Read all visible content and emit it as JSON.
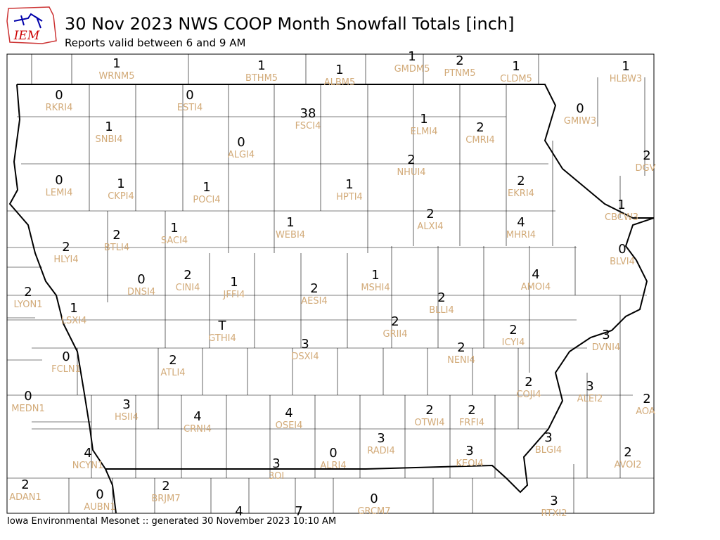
{
  "header": {
    "logo_text": "IEM",
    "title": "30 Nov 2023 NWS COOP Month Snowfall Totals [inch]",
    "subtitle": "Reports valid between 6 and 9 AM"
  },
  "stations": [
    {
      "value": "1",
      "id": "WRNM5"
    },
    {
      "value": "1",
      "id": "BTHM5"
    },
    {
      "value": "1",
      "id": "ALBM5"
    },
    {
      "value": "1",
      "id": "GMDM5"
    },
    {
      "value": "2",
      "id": "PTNM5"
    },
    {
      "value": "1",
      "id": "CLDM5"
    },
    {
      "value": "1",
      "id": "HLBW3"
    },
    {
      "value": "0",
      "id": "RKRI4"
    },
    {
      "value": "0",
      "id": "ESTI4"
    },
    {
      "value": "38",
      "id": "FSCI4"
    },
    {
      "value": "1",
      "id": "ELMI4"
    },
    {
      "value": "0",
      "id": "GMIW3"
    },
    {
      "value": "1",
      "id": "SNBI4"
    },
    {
      "value": "0",
      "id": "ALGI4"
    },
    {
      "value": "2",
      "id": "CMRI4"
    },
    {
      "value": "2",
      "id": "DGV"
    },
    {
      "value": "2",
      "id": "NHUI4"
    },
    {
      "value": "0",
      "id": "LEMI4"
    },
    {
      "value": "1",
      "id": "CKPI4"
    },
    {
      "value": "1",
      "id": "POCI4"
    },
    {
      "value": "1",
      "id": "HPTI4"
    },
    {
      "value": "2",
      "id": "EKRI4"
    },
    {
      "value": "1",
      "id": "CBCW3"
    },
    {
      "value": "2",
      "id": "ALXI4"
    },
    {
      "value": "1",
      "id": "WEBI4"
    },
    {
      "value": "4",
      "id": "MHRI4"
    },
    {
      "value": "1",
      "id": "SACI4"
    },
    {
      "value": "2",
      "id": "BTLI4"
    },
    {
      "value": "2",
      "id": "HLYI4"
    },
    {
      "value": "0",
      "id": "BLVI4"
    },
    {
      "value": "4",
      "id": "AMOI4"
    },
    {
      "value": "1",
      "id": "MSHI4"
    },
    {
      "value": "0",
      "id": "DNSI4"
    },
    {
      "value": "2",
      "id": "CINI4"
    },
    {
      "value": "1",
      "id": "JFFI4"
    },
    {
      "value": "2",
      "id": "AESI4"
    },
    {
      "value": "2",
      "id": "LYON1"
    },
    {
      "value": "1",
      "id": "LSXI4"
    },
    {
      "value": "2",
      "id": "BLLI4"
    },
    {
      "value": "T",
      "id": "GTHI4"
    },
    {
      "value": "2",
      "id": "ICYI4"
    },
    {
      "value": "3",
      "id": "DVNI4"
    },
    {
      "value": "2",
      "id": "GRII4"
    },
    {
      "value": "3",
      "id": "DSXI4"
    },
    {
      "value": "2",
      "id": "NENI4"
    },
    {
      "value": "0",
      "id": "FCLN1"
    },
    {
      "value": "2",
      "id": "ATLI4"
    },
    {
      "value": "2",
      "id": "COJI4"
    },
    {
      "value": "3",
      "id": "ALEI2"
    },
    {
      "value": "0",
      "id": "MEDN1"
    },
    {
      "value": "3",
      "id": "HSII4"
    },
    {
      "value": "4",
      "id": "CRNI4"
    },
    {
      "value": "4",
      "id": "OSEI4"
    },
    {
      "value": "2",
      "id": "OTWI4"
    },
    {
      "value": "2",
      "id": "FRFI4"
    },
    {
      "value": "2",
      "id": "AOA"
    },
    {
      "value": "3",
      "id": "BLGI4"
    },
    {
      "value": "4",
      "id": "NCYN1"
    },
    {
      "value": "3",
      "id": "RADI4"
    },
    {
      "value": "0",
      "id": "ALRI4"
    },
    {
      "value": "3",
      "id": "KEOI4"
    },
    {
      "value": "2",
      "id": "AVOI2"
    },
    {
      "value": "3",
      "id": "3OI"
    },
    {
      "value": "2",
      "id": "ADAN1"
    },
    {
      "value": "2",
      "id": "BRJM7"
    },
    {
      "value": "0",
      "id": "AUBN1"
    },
    {
      "value": "0",
      "id": "GRCM7"
    },
    {
      "value": "3",
      "id": "RTXI2"
    },
    {
      "value": "4"
    },
    {
      "value": "7"
    }
  ],
  "footer": "Iowa Environmental Mesonet :: generated 30 November 2023 10:10 AM"
}
